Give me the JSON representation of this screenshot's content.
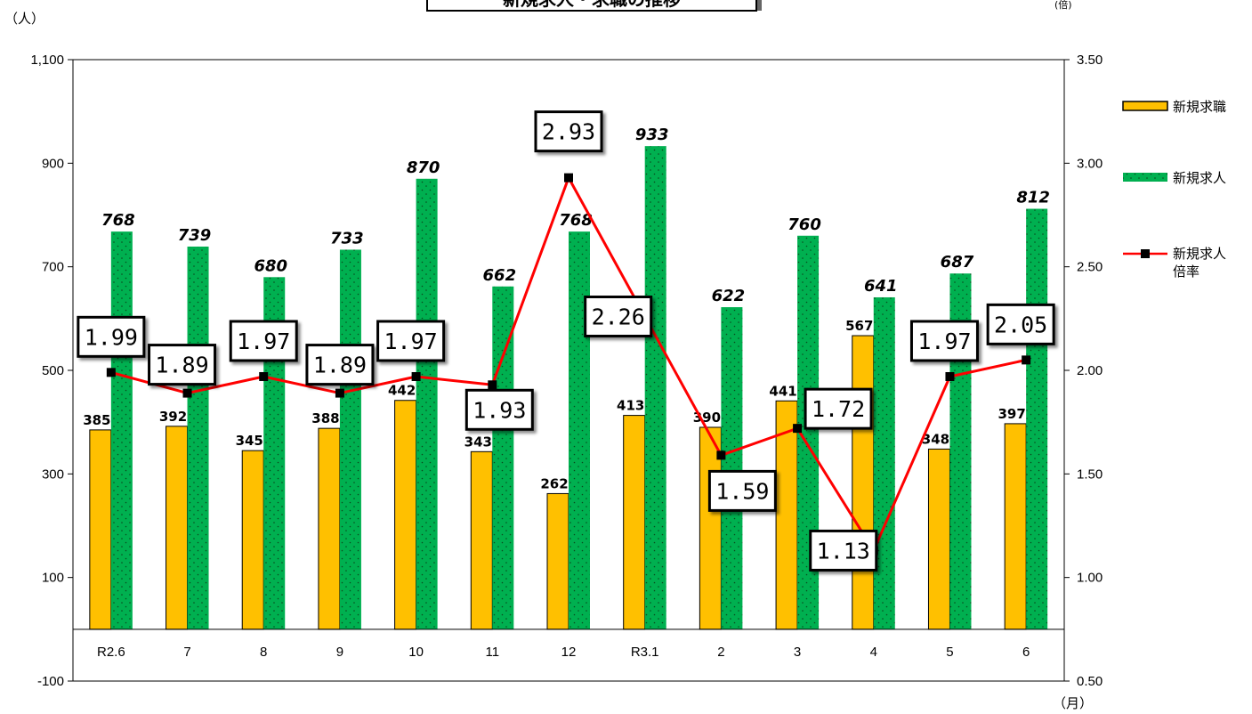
{
  "chart_data": {
    "type": "bar",
    "title": "新規求人・求職の推移",
    "categories": [
      "R2.6",
      "7",
      "8",
      "9",
      "10",
      "11",
      "12",
      "R3.1",
      "2",
      "3",
      "4",
      "5",
      "6"
    ],
    "series": [
      {
        "name": "新規求職",
        "values": [
          385,
          392,
          345,
          388,
          442,
          343,
          262,
          413,
          390,
          441,
          567,
          348,
          397
        ],
        "color": "#ffc000",
        "axis": "left"
      },
      {
        "name": "新規求人",
        "values": [
          768,
          739,
          680,
          733,
          870,
          662,
          768,
          933,
          622,
          760,
          641,
          687,
          812
        ],
        "color": "#00b050",
        "axis": "left"
      },
      {
        "name": "新規求人\n倍率",
        "values": [
          1.99,
          1.89,
          1.97,
          1.89,
          1.97,
          1.93,
          2.93,
          2.26,
          1.59,
          1.72,
          1.13,
          1.97,
          2.05
        ],
        "color": "#ff0000",
        "axis": "right",
        "type": "line"
      }
    ],
    "ratio_labels": [
      "1.99",
      "1.89",
      "1.97",
      "1.89",
      "1.97",
      "1.93",
      "2.93",
      "2.26",
      "1.59",
      "1.72",
      "1.13",
      "1.97",
      "2.05"
    ],
    "y_left": {
      "min": -100,
      "max": 1100,
      "ticks": [
        "-100",
        "100",
        "300",
        "500",
        "700",
        "900",
        "1,100"
      ],
      "tick_values": [
        -100,
        100,
        300,
        500,
        700,
        900,
        1100
      ],
      "unit": "（人）"
    },
    "y_right": {
      "min": 0.5,
      "max": 3.5,
      "ticks": [
        "0.50",
        "1.00",
        "1.50",
        "2.00",
        "2.50",
        "3.00",
        "3.50"
      ],
      "tick_values": [
        0.5,
        1.0,
        1.5,
        2.0,
        2.5,
        3.0,
        3.5
      ],
      "unit": "(倍)"
    },
    "x_unit": "（月）",
    "legend": {
      "position": "right",
      "items": [
        "新規求職",
        "新規求人",
        "新規求人倍率"
      ]
    }
  }
}
